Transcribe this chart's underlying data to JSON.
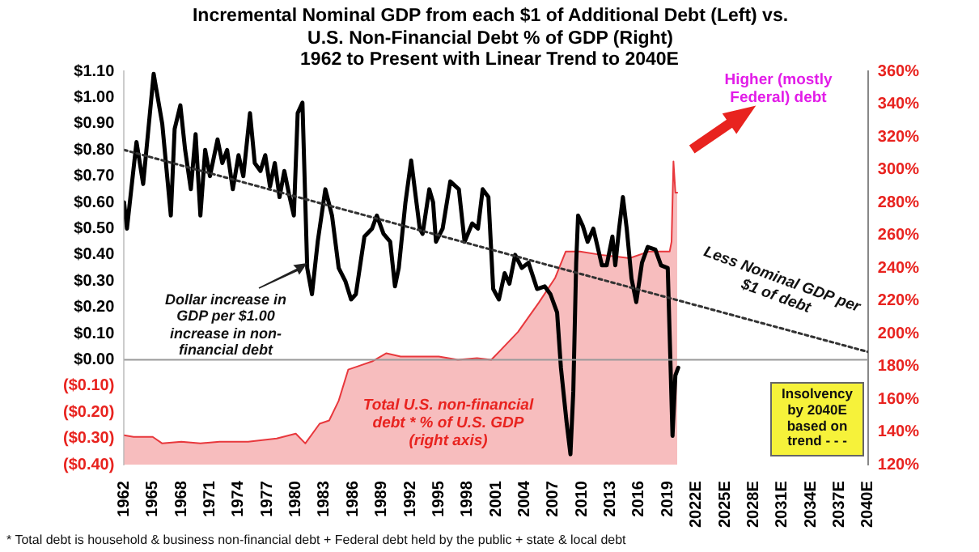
{
  "chart_data": {
    "type": "line",
    "title": "Incremental Nominal GDP from each $1 of Additional Debt (Left) vs. U.S. Non-Financial Debt % of GDP (Right)",
    "subtitle": "1962 to Present with Linear Trend to 2040E",
    "xlim": [
      1962,
      2040
    ],
    "xticks": [
      1962,
      1965,
      1968,
      1971,
      1974,
      1977,
      1980,
      1983,
      1986,
      1989,
      1992,
      1995,
      1998,
      2001,
      2004,
      2007,
      2010,
      2013,
      2016,
      2019,
      {
        "value": 2022,
        "label": "2022E"
      },
      {
        "value": 2025,
        "label": "2025E"
      },
      {
        "value": 2028,
        "label": "2028E"
      },
      {
        "value": 2031,
        "label": "2031E"
      },
      {
        "value": 2034,
        "label": "2034E"
      },
      {
        "value": 2037,
        "label": "2037E"
      },
      {
        "value": 2040,
        "label": "2040E"
      }
    ],
    "ylim": [
      -0.4,
      1.1
    ],
    "yticks": [
      {
        "value": -0.4,
        "label": "($0.40)"
      },
      {
        "value": -0.3,
        "label": "($0.30)"
      },
      {
        "value": -0.2,
        "label": "($0.20)"
      },
      {
        "value": -0.1,
        "label": "($0.10)"
      },
      {
        "value": 0,
        "label": "$0.00"
      },
      {
        "value": 0.1,
        "label": "$0.10"
      },
      {
        "value": 0.2,
        "label": "$0.20"
      },
      {
        "value": 0.3,
        "label": "$0.30"
      },
      {
        "value": 0.4,
        "label": "$0.40"
      },
      {
        "value": 0.5,
        "label": "$0.50"
      },
      {
        "value": 0.6,
        "label": "$0.60"
      },
      {
        "value": 0.7,
        "label": "$0.70"
      },
      {
        "value": 0.8,
        "label": "$0.80"
      },
      {
        "value": 0.9,
        "label": "$0.90"
      },
      {
        "value": 1,
        "label": "$1.00"
      },
      {
        "value": 1.1,
        "label": "$1.10"
      }
    ],
    "y2lim": [
      120,
      360
    ],
    "y2ticks": [
      {
        "value": 120,
        "label": "120%"
      },
      {
        "value": 140,
        "label": "140%"
      },
      {
        "value": 160,
        "label": "160%"
      },
      {
        "value": 180,
        "label": "180%"
      },
      {
        "value": 200,
        "label": "200%"
      },
      {
        "value": 220,
        "label": "220%"
      },
      {
        "value": 240,
        "label": "240%"
      },
      {
        "value": 260,
        "label": "260%"
      },
      {
        "value": 280,
        "label": "280%"
      },
      {
        "value": 300,
        "label": "300%"
      },
      {
        "value": 320,
        "label": "320%"
      },
      {
        "value": 340,
        "label": "340%"
      },
      {
        "value": 360,
        "label": "360%"
      }
    ],
    "series": [
      {
        "type": "area",
        "axis": "y2",
        "color": "#e8383d",
        "x": [
          1962,
          1963,
          1965,
          1966,
          1968,
          1970,
          1972,
          1975,
          1978,
          1980,
          1981,
          1982.5,
          1983.5,
          1984.5,
          1985.5,
          1986.5,
          1988,
          1989.5,
          1991,
          1993,
          1995,
          1997,
          1999,
          2000.5,
          2001.5,
          2003.3,
          2005.5,
          2007.2,
          2008.3,
          2009.8,
          2012,
          2015,
          2017,
          2019.2,
          2019.4,
          2019.6,
          2019.8,
          2020
        ],
        "values": [
          138,
          137,
          137,
          133,
          134,
          133,
          134,
          134,
          136,
          139,
          133,
          145,
          147,
          159,
          178,
          180,
          183,
          188,
          186,
          186,
          186,
          184,
          185,
          184,
          190,
          201,
          219,
          234,
          250,
          250,
          248,
          246,
          250,
          250,
          256,
          305,
          286,
          286
        ]
      },
      {
        "type": "line",
        "color": "#000000",
        "x": [
          1962,
          1962.3,
          1963.3,
          1964,
          1965.1,
          1966,
          1966.9,
          1967.3,
          1967.9,
          1968.4,
          1969,
          1969.5,
          1970,
          1970.5,
          1971,
          1971.8,
          1972.3,
          1972.8,
          1973.4,
          1974,
          1974.5,
          1975.2,
          1975.7,
          1976.3,
          1976.8,
          1977.3,
          1977.8,
          1978.3,
          1978.8,
          1979.3,
          1979.8,
          1980.2,
          1980.7,
          1981.2,
          1981.7,
          1982.3,
          1983.1,
          1983.8,
          1984.5,
          1985.2,
          1985.8,
          1986.3,
          1987.2,
          1988,
          1988.5,
          1989.2,
          1989.9,
          1990.4,
          1990.8,
          1991.5,
          1992.1,
          1993,
          1993.3,
          1994,
          1994.4,
          1994.7,
          1995.4,
          1996.2,
          1997.1,
          1997.7,
          1998.5,
          1999.1,
          1999.6,
          2000.2,
          2000.7,
          2001.3,
          2001.9,
          2002.4,
          2003,
          2003.7,
          2004.4,
          2005.3,
          2006.1,
          2006.7,
          2007.4,
          2007.8,
          2008.4,
          2008.8,
          2009.1,
          2009.4,
          2009.6,
          2010.1,
          2010.6,
          2011.2,
          2012.1,
          2012.6,
          2013.2,
          2013.5,
          2013.9,
          2014.3,
          2014.7,
          2015.2,
          2015.7,
          2016.3,
          2016.9,
          2017.7,
          2018.3,
          2019,
          2019.3,
          2019.5,
          2019.8,
          2020.1
        ],
        "values": [
          0.6,
          0.5,
          0.83,
          0.67,
          1.09,
          0.9,
          0.55,
          0.88,
          0.97,
          0.8,
          0.65,
          0.86,
          0.55,
          0.8,
          0.7,
          0.84,
          0.75,
          0.8,
          0.65,
          0.78,
          0.7,
          0.94,
          0.75,
          0.72,
          0.78,
          0.66,
          0.75,
          0.62,
          0.72,
          0.63,
          0.55,
          0.94,
          0.98,
          0.35,
          0.25,
          0.45,
          0.65,
          0.55,
          0.35,
          0.3,
          0.23,
          0.25,
          0.47,
          0.5,
          0.55,
          0.48,
          0.45,
          0.28,
          0.35,
          0.6,
          0.76,
          0.5,
          0.48,
          0.65,
          0.6,
          0.45,
          0.5,
          0.68,
          0.65,
          0.45,
          0.52,
          0.5,
          0.65,
          0.62,
          0.27,
          0.23,
          0.33,
          0.29,
          0.4,
          0.35,
          0.37,
          0.27,
          0.28,
          0.25,
          0.18,
          -0.03,
          -0.24,
          -0.36,
          -0.12,
          0.37,
          0.55,
          0.51,
          0.45,
          0.5,
          0.36,
          0.36,
          0.47,
          0.36,
          0.5,
          0.62,
          0.5,
          0.31,
          0.22,
          0.37,
          0.43,
          0.42,
          0.36,
          0.35,
          -0.03,
          -0.29,
          -0.06,
          -0.03
        ]
      },
      {
        "type": "line",
        "color": "#333333",
        "line_style": "dotted",
        "x": [
          1962,
          2040
        ],
        "values": [
          0.8,
          0.03
        ]
      }
    ],
    "ref_lines": [
      {
        "axis": "y",
        "value": 0,
        "color": "#999999"
      }
    ],
    "annotations": [
      "Dollar increase in GDP per $1.00 increase in non-financial debt",
      "Total U.S. non-financial debt * % of U.S. GDP (right axis)",
      "Less Nominal GDP per $1 of debt",
      "Insolvency by 2040E based on trend - - -",
      "Higher (mostly Federal) debt",
      "* Total debt is household & business non-financial debt + Federal debt held by the public + state & local debt"
    ],
    "grid": false,
    "legend": false,
    "marker": "none"
  }
}
